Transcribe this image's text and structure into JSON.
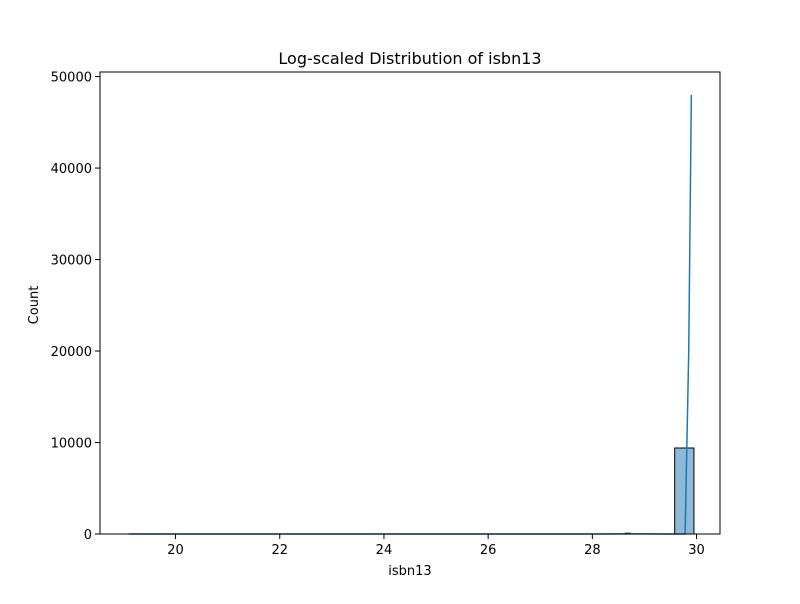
{
  "chart_data": {
    "type": "bar",
    "title": "Log-scaled Distribution of isbn13",
    "xlabel": "isbn13",
    "ylabel": "Count",
    "xlim": [
      18.55,
      30.45
    ],
    "ylim": [
      0,
      50500
    ],
    "xticks": [
      20,
      22,
      24,
      26,
      28,
      30
    ],
    "yticks": [
      0,
      10000,
      20000,
      30000,
      40000,
      50000
    ],
    "grid": false,
    "legend": "none",
    "bars": [
      {
        "x0": 29.58,
        "x1": 29.95,
        "value": 9400
      },
      {
        "x0": 28.63,
        "x1": 28.73,
        "value": 80
      }
    ],
    "kde_line": {
      "name": "kde",
      "x": [
        19.1,
        20.0,
        21.0,
        22.0,
        23.0,
        24.0,
        25.0,
        26.0,
        27.0,
        28.0,
        28.6,
        29.0,
        29.4,
        29.7,
        29.78,
        29.85,
        29.9
      ],
      "y": [
        0,
        0,
        0,
        0,
        0,
        0,
        0,
        0,
        0,
        0,
        20,
        10,
        5,
        0,
        0,
        20000,
        48000
      ]
    },
    "colors": {
      "bar_fill": "#8fb9d8",
      "bar_edge": "#000000",
      "line": "#1f77b4"
    }
  }
}
